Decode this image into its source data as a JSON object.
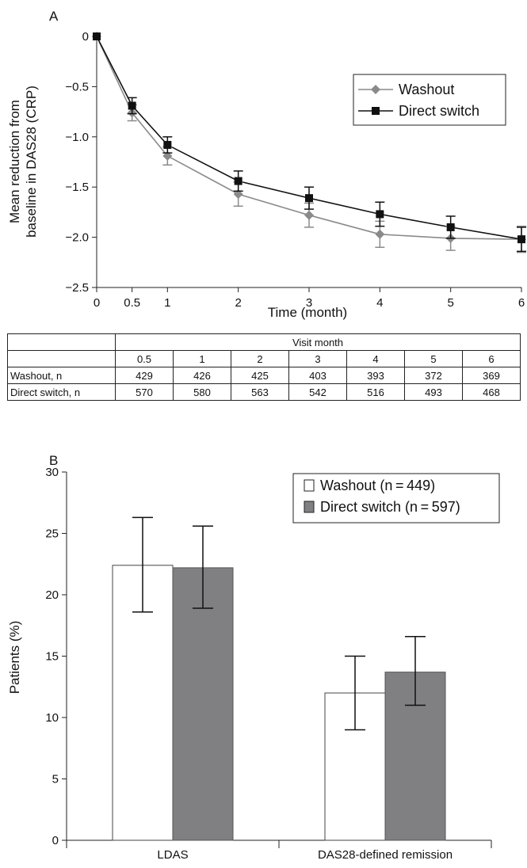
{
  "chart_data": [
    {
      "type": "line",
      "panel_label": "A",
      "xlabel": "Time (month)",
      "ylabel_lines": [
        "Mean reduction from",
        "baseline in DAS28 (CRP)"
      ],
      "x_ticks": [
        "0",
        "0.5",
        "1",
        "2",
        "3",
        "4",
        "5",
        "6"
      ],
      "y_ticks": [
        "0",
        "−0.5",
        "−1.0",
        "−1.5",
        "−2.0",
        "−2.5"
      ],
      "xlim": [
        0,
        6
      ],
      "ylim": [
        -2.5,
        0
      ],
      "legend_position": "top-right",
      "x": [
        0,
        0.5,
        1,
        2,
        3,
        4,
        5,
        6
      ],
      "series": [
        {
          "name": "Washout",
          "marker": "diamond",
          "color": "#8a8a8a",
          "values": [
            0,
            -0.76,
            -1.19,
            -1.57,
            -1.78,
            -1.97,
            -2.01,
            -2.02
          ],
          "err": [
            0,
            0.08,
            0.09,
            0.12,
            0.12,
            0.13,
            0.12,
            0.13
          ]
        },
        {
          "name": "Direct switch",
          "marker": "square",
          "color": "#111111",
          "values": [
            0,
            -0.69,
            -1.08,
            -1.44,
            -1.61,
            -1.77,
            -1.9,
            -2.02
          ],
          "err": [
            0,
            0.08,
            0.08,
            0.1,
            0.11,
            0.12,
            0.11,
            0.12
          ]
        }
      ]
    },
    {
      "type": "bar",
      "panel_label": "B",
      "ylabel": "Patients (%)",
      "categories": [
        "LDAS",
        "DAS28-defined remission"
      ],
      "y_ticks": [
        "0",
        "5",
        "10",
        "15",
        "20",
        "25",
        "30"
      ],
      "ylim": [
        0,
        30
      ],
      "legend_position": "top-right",
      "series": [
        {
          "name": "Washout (n = 449)",
          "color": "#ffffff",
          "values": [
            22.4,
            12.0
          ],
          "err_low": [
            18.6,
            9.0
          ],
          "err_high": [
            26.3,
            15.0
          ]
        },
        {
          "name": "Direct switch (n = 597)",
          "color": "#808083",
          "values": [
            22.2,
            13.7
          ],
          "err_low": [
            18.9,
            11.0
          ],
          "err_high": [
            25.6,
            16.6
          ]
        }
      ]
    }
  ],
  "visit_table": {
    "header": "Visit month",
    "months": [
      "0.5",
      "1",
      "2",
      "3",
      "4",
      "5",
      "6"
    ],
    "rows": [
      {
        "label": "Washout, n",
        "values": [
          "429",
          "426",
          "425",
          "403",
          "393",
          "372",
          "369"
        ]
      },
      {
        "label": "Direct switch, n",
        "values": [
          "570",
          "580",
          "563",
          "542",
          "516",
          "493",
          "468"
        ]
      }
    ]
  }
}
